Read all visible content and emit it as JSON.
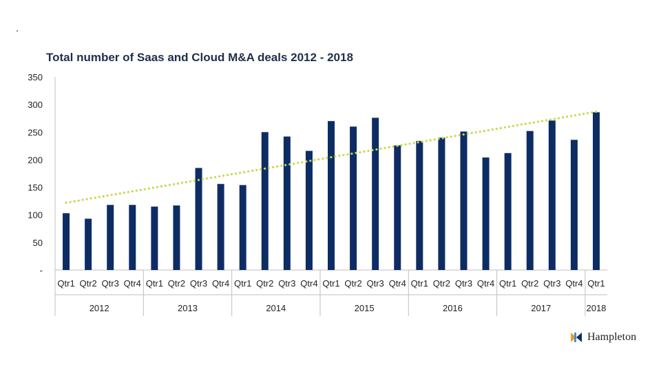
{
  "chart_data": {
    "type": "bar",
    "title": "Total number of Saas and Cloud M&A deals 2012 - 2018",
    "xlabel": "",
    "ylabel": "",
    "ylim": [
      0,
      350
    ],
    "yticks": [
      "-",
      "50",
      "100",
      "150",
      "200",
      "250",
      "300",
      "350"
    ],
    "categories": [
      "Qtr1",
      "Qtr2",
      "Qtr3",
      "Qtr4",
      "Qtr1",
      "Qtr2",
      "Qtr3",
      "Qtr4",
      "Qtr1",
      "Qtr2",
      "Qtr3",
      "Qtr4",
      "Qtr1",
      "Qtr2",
      "Qtr3",
      "Qtr4",
      "Qtr1",
      "Qtr2",
      "Qtr3",
      "Qtr4",
      "Qtr1",
      "Qtr2",
      "Qtr3",
      "Qtr4",
      "Qtr1"
    ],
    "groups": [
      {
        "label": "2012",
        "count": 4
      },
      {
        "label": "2013",
        "count": 4
      },
      {
        "label": "2014",
        "count": 4
      },
      {
        "label": "2015",
        "count": 4
      },
      {
        "label": "2016",
        "count": 4
      },
      {
        "label": "2017",
        "count": 4
      },
      {
        "label": "2018",
        "count": 1
      }
    ],
    "values": [
      103,
      93,
      118,
      118,
      115,
      117,
      185,
      156,
      154,
      250,
      242,
      216,
      270,
      260,
      276,
      226,
      234,
      240,
      251,
      204,
      212,
      252,
      271,
      236,
      286
    ],
    "trendline": {
      "type": "linear",
      "start": 122,
      "end": 287,
      "style": "dotted"
    },
    "grid": false,
    "legend": "none",
    "colors": {
      "bar": "#0e2c64",
      "trend": "#c8d84f",
      "axis": "#bfbfbf",
      "title": "#1f2f4a"
    }
  },
  "brand": {
    "name": "Hampleton"
  }
}
